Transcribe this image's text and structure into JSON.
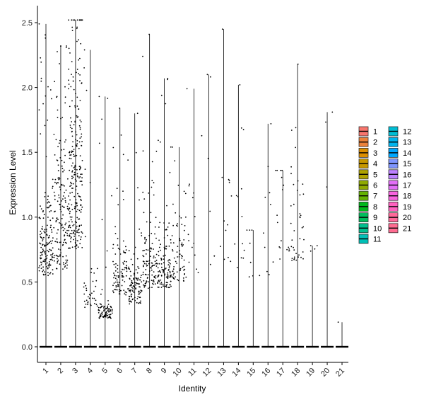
{
  "chart_data": {
    "type": "violin",
    "xlabel": "Identity",
    "ylabel": "Expression Level",
    "categories": [
      "1",
      "2",
      "3",
      "4",
      "5",
      "6",
      "7",
      "8",
      "9",
      "10",
      "11",
      "12",
      "13",
      "14",
      "15",
      "16",
      "17",
      "18",
      "19",
      "20",
      "21"
    ],
    "ylim": [
      0,
      2.55
    ],
    "yticks": [
      0.0,
      0.5,
      1.0,
      1.5,
      2.0,
      2.5
    ],
    "ytick_labels": [
      "0.0",
      "0.5",
      "1.0",
      "1.5",
      "2.0",
      "2.5"
    ],
    "grid": false,
    "legend_position": "right",
    "legend_columns": 2,
    "series": [
      {
        "name": "1",
        "color": "#F8766D",
        "max": 2.49,
        "n_points": 160,
        "center": 0.55,
        "spread": 0.22
      },
      {
        "name": "2",
        "color": "#EC8239",
        "max": 2.32,
        "n_points": 150,
        "center": 0.6,
        "spread": 0.4
      },
      {
        "name": "3",
        "color": "#DB8E00",
        "max": 2.52,
        "n_points": 260,
        "center": 0.75,
        "spread": 0.55
      },
      {
        "name": "4",
        "color": "#C79800",
        "max": 2.29,
        "n_points": 40,
        "center": 0.3,
        "spread": 0.08
      },
      {
        "name": "5",
        "color": "#AEA200",
        "max": 1.93,
        "n_points": 90,
        "center": 0.22,
        "spread": 0.05
      },
      {
        "name": "6",
        "color": "#8FAA00",
        "max": 1.84,
        "n_points": 95,
        "center": 0.4,
        "spread": 0.18
      },
      {
        "name": "7",
        "color": "#64B200",
        "max": 1.8,
        "n_points": 110,
        "center": 0.33,
        "spread": 0.12
      },
      {
        "name": "8",
        "color": "#00B81B",
        "max": 2.41,
        "n_points": 110,
        "center": 0.45,
        "spread": 0.2
      },
      {
        "name": "9",
        "color": "#00BD5C",
        "max": 2.07,
        "n_points": 120,
        "center": 0.45,
        "spread": 0.18
      },
      {
        "name": "10",
        "color": "#00C08E",
        "max": 1.54,
        "n_points": 70,
        "center": 0.5,
        "spread": 0.18
      },
      {
        "name": "11",
        "color": "#00C1B7",
        "max": 1.99,
        "n_points": 14,
        "center": 0.55,
        "spread": 0.4
      },
      {
        "name": "12",
        "color": "#00BDD4",
        "max": 2.1,
        "n_points": 8,
        "center": 0.6,
        "spread": 0.5
      },
      {
        "name": "13",
        "color": "#00B5EE",
        "max": 2.45,
        "n_points": 12,
        "center": 0.6,
        "spread": 0.45
      },
      {
        "name": "14",
        "color": "#00A7FF",
        "max": 2.02,
        "n_points": 14,
        "center": 0.6,
        "spread": 0.4
      },
      {
        "name": "15",
        "color": "#7F96FF",
        "max": 0.9,
        "n_points": 8,
        "center": 0.5,
        "spread": 0.2
      },
      {
        "name": "16",
        "color": "#BC81FF",
        "max": 1.72,
        "n_points": 10,
        "center": 0.55,
        "spread": 0.4
      },
      {
        "name": "17",
        "color": "#E26EF7",
        "max": 1.36,
        "n_points": 18,
        "center": 0.6,
        "spread": 0.3
      },
      {
        "name": "18",
        "color": "#F863DF",
        "max": 2.18,
        "n_points": 40,
        "center": 0.65,
        "spread": 0.25
      },
      {
        "name": "19",
        "color": "#FF62BF",
        "max": 0.78,
        "n_points": 4,
        "center": 0.55,
        "spread": 0.2
      },
      {
        "name": "20",
        "color": "#FF6A9A",
        "max": 1.81,
        "n_points": 3,
        "center": 1.2,
        "spread": 0.4
      },
      {
        "name": "21",
        "color": "#FF6C91",
        "max": 0.19,
        "n_points": 1,
        "center": 0.18,
        "spread": 0.01
      }
    ]
  }
}
